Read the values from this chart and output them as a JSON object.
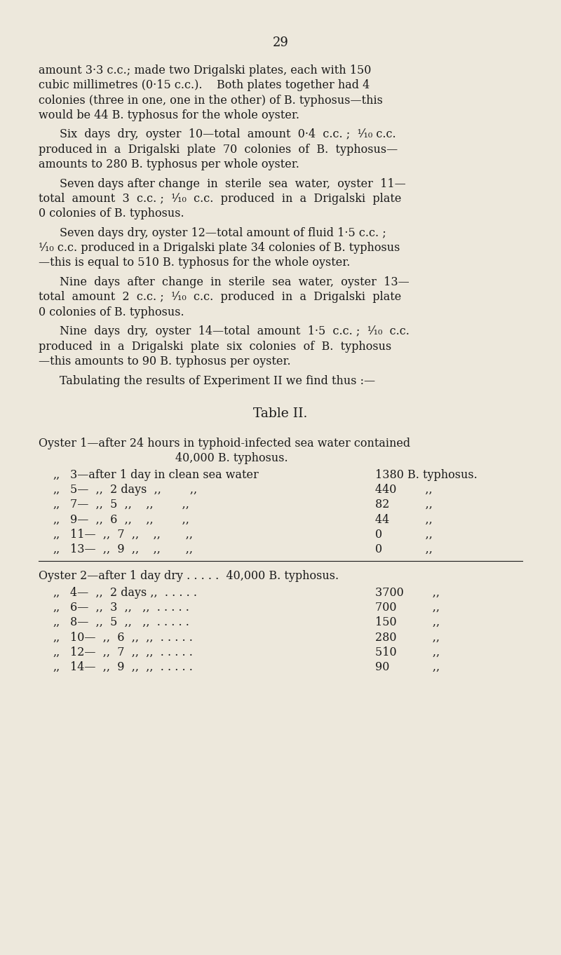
{
  "bg_color": "#EDE8DC",
  "text_color": "#1a1a1a",
  "page_number": "29",
  "body_paragraphs": [
    "amount 3·3 c.c.; made two Drigalski plates, each with 150\ncubic millimetres (0·15 c.c.).    Both  plates  together  had  4\ncolonies (three in one, one in the other) of  B.  typhosus—this\nwould be 44 B. typhosus for the whole oyster.",
    "Six  days  dry,  oyster  10—total  amount  0·4  c.c. ;  ¹⁄₁₀ c.c.\nproduced in  a  Drigalski  plate  70  colonies  of  B.  typhosus—\namounts to 280 B. typhosus per whole oyster.",
    "Seven days after change  in  sterile  sea  water,  oyster  11—\ntotal  amount  3  c.c. ;  ¹⁄₁₀  c.c.  produced  in  a  Drigalski  plate\n0 colonies of B. typhosus.",
    "Seven days dry, oyster 12—total amount of fluid 1·5 c.c. ;\n¹⁄₁₀ c.c. produced in a Drigalski plate 34 colonies of B. typhosus\n—this is equal to 510 B. typhosus for the whole oyster.",
    "Nine  days  after  change  in  sterile  sea  water,  oyster  13—\ntotal  amount  2  c.c. ;  ¹⁄₁₀  c.c.  produced  in  a  Drigalski  plate\n0 colonies of B. typhosus.",
    "Nine  days  dry,  oyster  14—total  amount  1·5  c.c. ;  ¹⁄₁₀  c.c.\nproduced  in  a  Drigalski  plate  six  colonies  of  B.  typhosus\n—this amounts to 90 B. typhosus per oyster.",
    "Tabulating the results of Experiment II we find thus :—"
  ],
  "table_title": "Table II.",
  "oyster1_header1": "Oyster 1—after 24 hours in typhoid-infected sea water contained",
  "oyster1_header2": "40,000 B. typhosus.",
  "oyster1_rows": [
    [
      "„’’",
      "3—after 1 day in clean sea water",
      "1380 B. typhosus."
    ],
    [
      "„’’",
      "5—  „’’  2 days  „’’        „’’",
      "440        „’’"
    ],
    [
      "„’’",
      "7—  „’’  5  „’’   „’’       „’’",
      "82        „’’"
    ],
    [
      "„’’",
      "9—  „’’  6  „’’   „’’       „’’",
      "44        „’’"
    ],
    [
      "„’’",
      "11—  „’’  7  „’’   „’’       „’’",
      "0        „’’"
    ],
    [
      "„’’",
      "13—  „’’  9  „’’   „’’       „’’",
      "0        „’’"
    ]
  ],
  "oyster2_header": "Oyster 2—after 1 day dry . . . . .  40,000 B. typhosus.",
  "oyster2_rows": [
    [
      "„’’",
      "4—  „’’  2 days „’’ . . . . .",
      "3700        „’’"
    ],
    [
      "„’’",
      "6—  „’’  3  „’’   „’’ . . . . .",
      "700        „’’"
    ],
    [
      "„’’",
      "8—  „’’  5  „’’   „’’ . . . . .",
      "150        „’’"
    ],
    [
      "„’’",
      "10—  „’’  6  „’’   „’’ . . . . .",
      "280        „’’"
    ],
    [
      "„’’",
      "12—  „’’  7  „’’   „’’ . . . . .",
      "510        „’’"
    ],
    [
      "„’’",
      "14—  „’’  9  „’’   „’’ . . . . .",
      "90        „’’"
    ]
  ]
}
